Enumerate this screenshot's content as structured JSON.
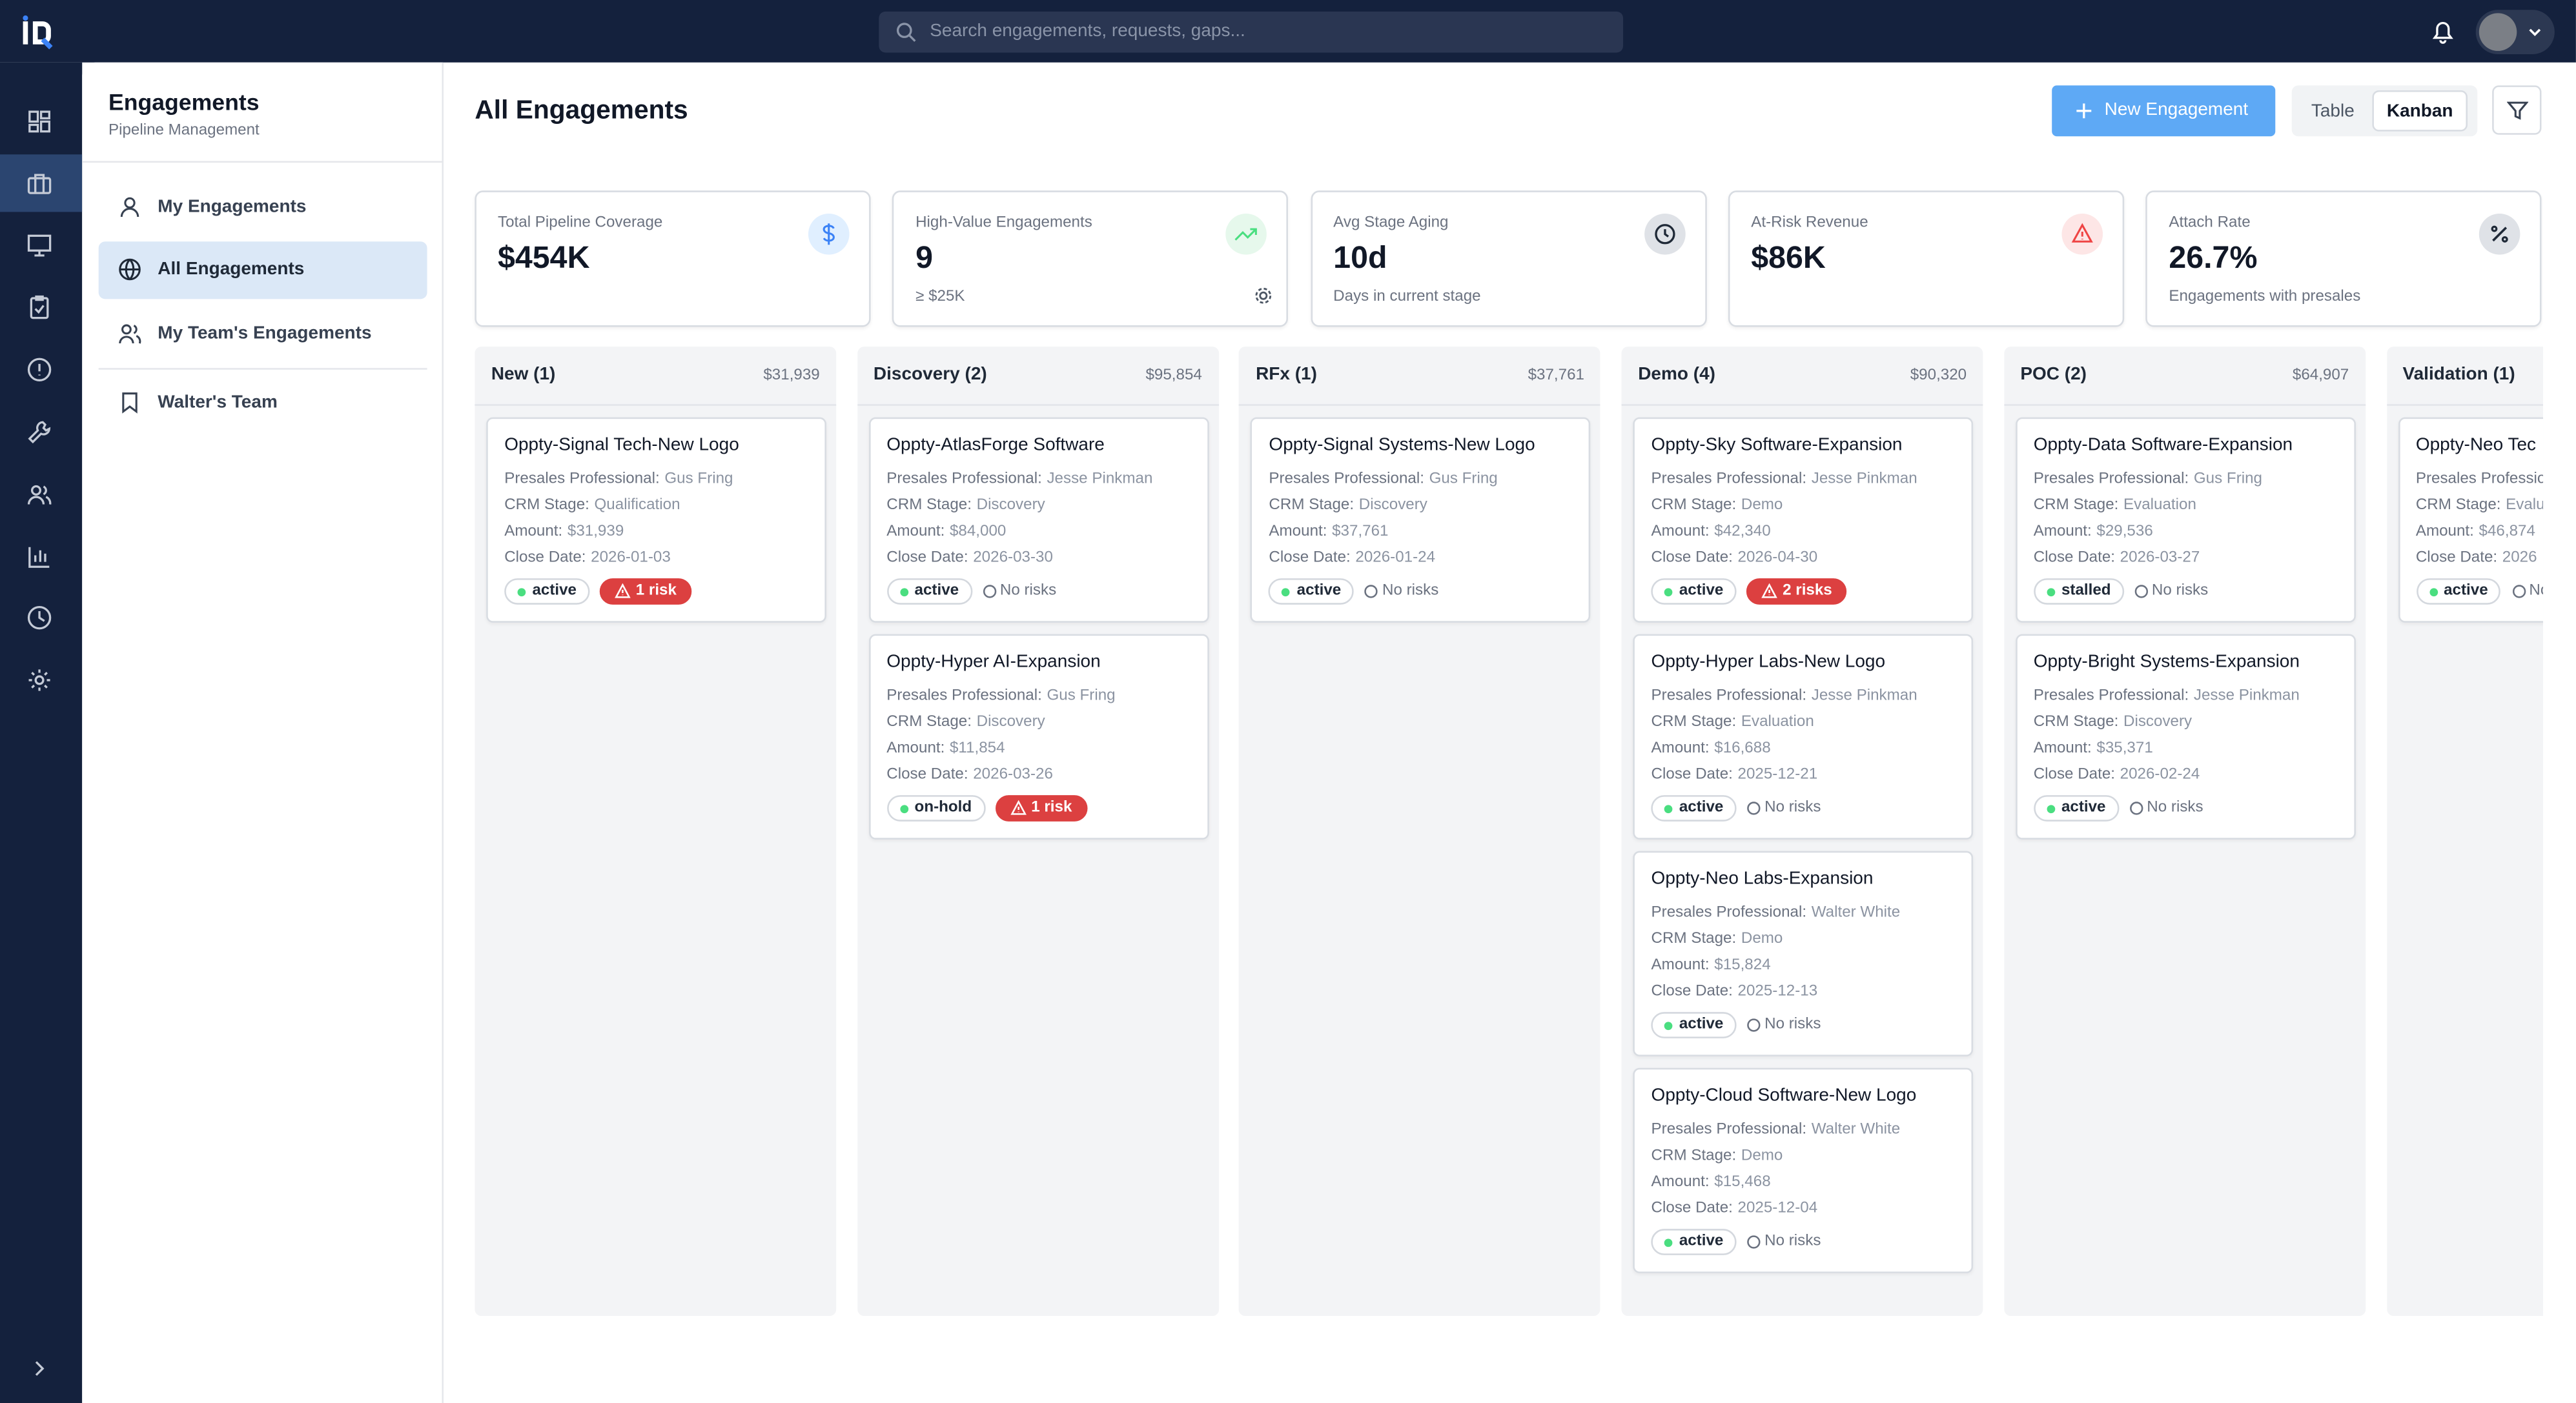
{
  "header": {
    "search_placeholder": "Search engagements, requests, gaps..."
  },
  "sidebar": {
    "title": "Engagements",
    "subtitle": "Pipeline Management",
    "items": [
      "My Engagements",
      "All Engagements",
      "My Team's Engagements",
      "Walter's Team"
    ],
    "active": 1
  },
  "main": {
    "title": "All Engagements",
    "new_button": "New Engagement",
    "views": [
      "Table",
      "Kanban"
    ],
    "active_view": 1
  },
  "stats": [
    {
      "label": "Total Pipeline Coverage",
      "value": "$454K",
      "icon": "dollar"
    },
    {
      "label": "High-Value Engagements",
      "value": "9",
      "sub": "≥ $25K",
      "icon": "trend"
    },
    {
      "label": "Avg Stage Aging",
      "value": "10d",
      "sub": "Days in current stage",
      "icon": "clock"
    },
    {
      "label": "At-Risk Revenue",
      "value": "$86K",
      "icon": "alert"
    },
    {
      "label": "Attach Rate",
      "value": "26.7%",
      "sub": "Engagements with presales",
      "icon": "percent"
    }
  ],
  "field_labels": {
    "presales": "Presales Professional:",
    "stage": "CRM Stage:",
    "amount": "Amount:",
    "close": "Close Date:"
  },
  "columns": [
    {
      "name": "New (1)",
      "total": "$31,939",
      "cards": [
        {
          "title": "Oppty-Signal Tech-New Logo",
          "presales": "Gus Fring",
          "stage": "Qualification",
          "amount": "$31,939",
          "close": "2026-01-03",
          "status": "active",
          "risk": "1 risk",
          "at_risk": true
        }
      ]
    },
    {
      "name": "Discovery (2)",
      "total": "$95,854",
      "cards": [
        {
          "title": "Oppty-AtlasForge Software",
          "presales": "Jesse Pinkman",
          "stage": "Discovery",
          "amount": "$84,000",
          "close": "2026-03-30",
          "status": "active",
          "risk": "No risks",
          "at_risk": false
        },
        {
          "title": "Oppty-Hyper AI-Expansion",
          "presales": "Gus Fring",
          "stage": "Discovery",
          "amount": "$11,854",
          "close": "2026-03-26",
          "status": "on-hold",
          "risk": "1 risk",
          "at_risk": true
        }
      ]
    },
    {
      "name": "RFx (1)",
      "total": "$37,761",
      "cards": [
        {
          "title": "Oppty-Signal Systems-New Logo",
          "presales": "Gus Fring",
          "stage": "Discovery",
          "amount": "$37,761",
          "close": "2026-01-24",
          "status": "active",
          "risk": "No risks",
          "at_risk": false
        }
      ]
    },
    {
      "name": "Demo (4)",
      "total": "$90,320",
      "cards": [
        {
          "title": "Oppty-Sky Software-Expansion",
          "presales": "Jesse Pinkman",
          "stage": "Demo",
          "amount": "$42,340",
          "close": "2026-04-30",
          "status": "active",
          "risk": "2 risks",
          "at_risk": true
        },
        {
          "title": "Oppty-Hyper Labs-New Logo",
          "presales": "Jesse Pinkman",
          "stage": "Evaluation",
          "amount": "$16,688",
          "close": "2025-12-21",
          "status": "active",
          "risk": "No risks",
          "at_risk": false
        },
        {
          "title": "Oppty-Neo Labs-Expansion",
          "presales": "Walter White",
          "stage": "Demo",
          "amount": "$15,824",
          "close": "2025-12-13",
          "status": "active",
          "risk": "No risks",
          "at_risk": false
        },
        {
          "title": "Oppty-Cloud Software-New Logo",
          "presales": "Walter White",
          "stage": "Demo",
          "amount": "$15,468",
          "close": "2025-12-04",
          "status": "active",
          "risk": "No risks",
          "at_risk": false
        }
      ]
    },
    {
      "name": "POC (2)",
      "total": "$64,907",
      "cards": [
        {
          "title": "Oppty-Data Software-Expansion",
          "presales": "Gus Fring",
          "stage": "Evaluation",
          "amount": "$29,536",
          "close": "2026-03-27",
          "status": "stalled",
          "risk": "No risks",
          "at_risk": false
        },
        {
          "title": "Oppty-Bright Systems-Expansion",
          "presales": "Jesse Pinkman",
          "stage": "Discovery",
          "amount": "$35,371",
          "close": "2026-02-24",
          "status": "active",
          "risk": "No risks",
          "at_risk": false
        }
      ]
    },
    {
      "name": "Validation (1)",
      "cards": [
        {
          "title": "Oppty-Neo Tec",
          "stage": "Evaluation",
          "amount": "$46,874",
          "close": "2026",
          "status": "active",
          "risk": "No risks",
          "at_risk": false
        }
      ]
    }
  ]
}
